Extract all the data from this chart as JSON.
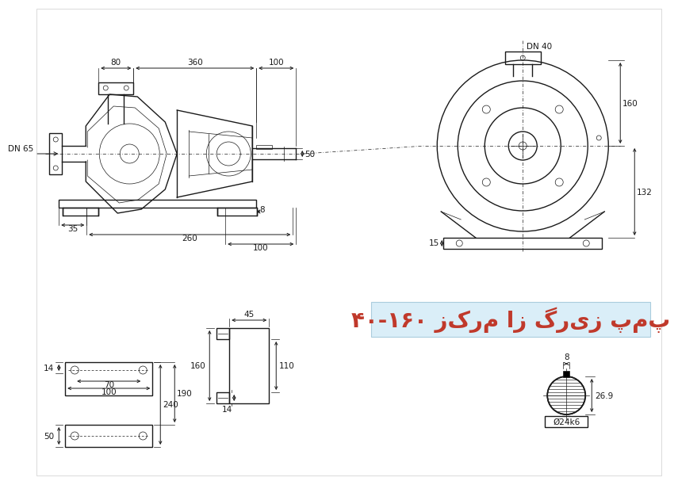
{
  "bg_color": "#ffffff",
  "title_text": "۴۰-۱۶۰ زکرم از گریز پمپ",
  "title_bg": "#daeef8",
  "title_color": "#c0392b",
  "line_color": "#1a1a1a",
  "dim_color": "#1a1a1a"
}
